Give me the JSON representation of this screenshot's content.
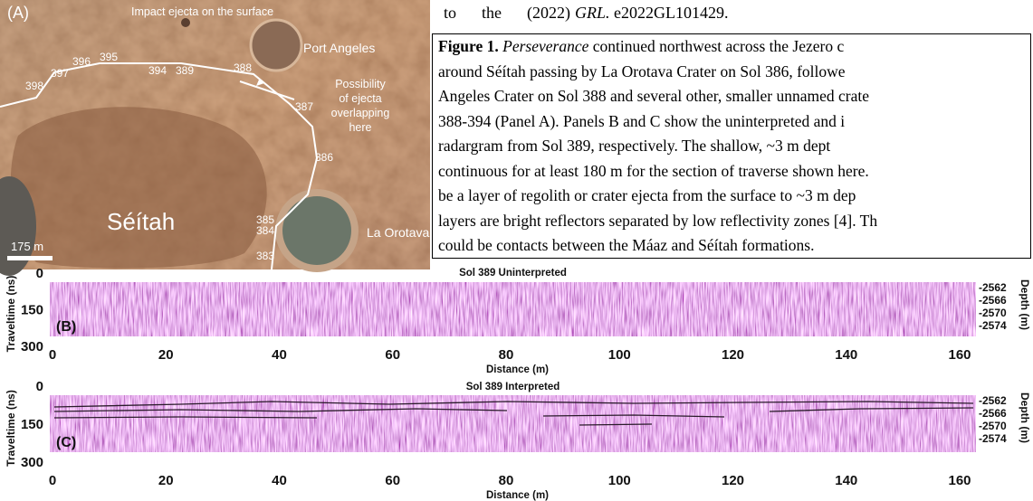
{
  "top_line": {
    "parts": [
      "to",
      "the",
      "(2022)",
      "GRL.",
      "e2022GL101429."
    ]
  },
  "map": {
    "panel_label": "(A)",
    "ejecta_label": "Impact ejecta on the surface",
    "port_angeles": "Port Angeles",
    "possibility_lines": [
      "Possibility",
      "of ejecta",
      "overlapping",
      "here"
    ],
    "la_orotava": "La Orotava",
    "seitah": "Séítah",
    "scale": "175 m",
    "sols": [
      "398",
      "397",
      "396",
      "395",
      "394",
      "389",
      "388",
      "387",
      "386",
      "385",
      "384",
      "383"
    ]
  },
  "caption": {
    "label": "Figure 1.",
    "italic": "Perseverance",
    "lines": [
      "continued northwest across the Jezero c",
      "around Séítah passing by La Orotava Crater on Sol 386, followe",
      "Angeles Crater on Sol 388 and several other, smaller unnamed crate",
      "388-394 (Panel A). Panels B and C show the uninterpreted and i",
      "radargram from Sol 389, respectively. The shallow, ~3 m dept",
      "continuous for at least 180 m for the section of traverse shown here.",
      "be a layer of regolith or crater ejecta from the surface to ~3 m dep",
      "layers are bright reflectors separated by low reflectivity zones [4]. Th",
      "could be contacts between the Máaz and Séítah formations."
    ]
  },
  "panels": [
    {
      "label": "(B)",
      "title": "Sol 389 Uninterpreted",
      "y_axis_label": "Traveltime (ns)",
      "y2_axis_label": "Depth (m)",
      "x_axis_label": "Distance (m)",
      "yticks": [
        0,
        150,
        300
      ],
      "y2ticks": [
        -2562,
        -2566,
        -2570,
        -2574
      ],
      "xticks": [
        0,
        20,
        40,
        60,
        80,
        100,
        120,
        140,
        160
      ]
    },
    {
      "label": "(C)",
      "title": "Sol 389 Interpreted",
      "y_axis_label": "Traveltime (ns)",
      "y2_axis_label": "Depth (m)",
      "x_axis_label": "Distance (m)",
      "yticks": [
        0,
        150,
        300
      ],
      "y2ticks": [
        -2562,
        -2566,
        -2570,
        -2574
      ],
      "xticks": [
        0,
        20,
        40,
        60,
        80,
        100,
        120,
        140,
        160
      ]
    }
  ]
}
